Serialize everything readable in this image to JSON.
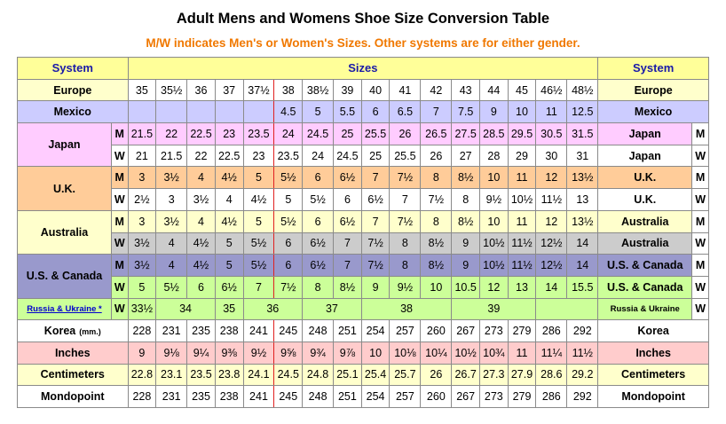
{
  "title": "Adult Mens and Womens Shoe Size Conversion Table",
  "subtitle": "M/W indicates Men's or Women's Sizes. Other systems are for either gender.",
  "header": {
    "system": "System",
    "sizes": "Sizes"
  },
  "colors": {
    "yellow": "#ffffcc",
    "lavender": "#ccccff",
    "pink": "#ffccff",
    "orange": "#ffcc99",
    "gray": "#cccccc",
    "blue": "#9999cc",
    "green": "#ccff99",
    "salmon": "#ffcccc",
    "white": "#ffffff",
    "accent": "#f07800"
  },
  "rows": {
    "europe": {
      "label": "Europe",
      "cells": [
        "35",
        "35½",
        "36",
        "37",
        "37½",
        "38",
        "38½",
        "39",
        "40",
        "41",
        "42",
        "43",
        "44",
        "45",
        "46½",
        "48½"
      ]
    },
    "mexico": {
      "label": "Mexico",
      "cells": [
        "",
        "",
        "",
        "",
        "",
        "4.5",
        "5",
        "5.5",
        "6",
        "6.5",
        "7",
        "7.5",
        "9",
        "10",
        "11",
        "12.5"
      ]
    },
    "japan": {
      "label": "Japan",
      "m": {
        "tag": "M",
        "label": "Japan",
        "cells": [
          "21.5",
          "22",
          "22.5",
          "23",
          "23.5",
          "24",
          "24.5",
          "25",
          "25.5",
          "26",
          "26.5",
          "27.5",
          "28.5",
          "29.5",
          "30.5",
          "31.5"
        ]
      },
      "w": {
        "tag": "W",
        "label": "Japan",
        "cells": [
          "21",
          "21.5",
          "22",
          "22.5",
          "23",
          "23.5",
          "24",
          "24.5",
          "25",
          "25.5",
          "26",
          "27",
          "28",
          "29",
          "30",
          "31"
        ]
      }
    },
    "uk": {
      "label": "U.K.",
      "m": {
        "tag": "M",
        "label": "U.K.",
        "cells": [
          "3",
          "3½",
          "4",
          "4½",
          "5",
          "5½",
          "6",
          "6½",
          "7",
          "7½",
          "8",
          "8½",
          "10",
          "11",
          "12",
          "13½"
        ]
      },
      "w": {
        "tag": "W",
        "label": "U.K.",
        "cells": [
          "2½",
          "3",
          "3½",
          "4",
          "4½",
          "5",
          "5½",
          "6",
          "6½",
          "7",
          "7½",
          "8",
          "9½",
          "10½",
          "11½",
          "13"
        ]
      }
    },
    "australia": {
      "label": "Australia",
      "m": {
        "tag": "M",
        "label": "Australia",
        "cells": [
          "3",
          "3½",
          "4",
          "4½",
          "5",
          "5½",
          "6",
          "6½",
          "7",
          "7½",
          "8",
          "8½",
          "10",
          "11",
          "12",
          "13½"
        ]
      },
      "w": {
        "tag": "W",
        "label": "Australia",
        "cells": [
          "3½",
          "4",
          "4½",
          "5",
          "5½",
          "6",
          "6½",
          "7",
          "7½",
          "8",
          "8½",
          "9",
          "10½",
          "11½",
          "12½",
          "14"
        ]
      }
    },
    "us": {
      "label": "U.S. & Canada",
      "m": {
        "tag": "M",
        "label": "U.S. & Canada",
        "cells": [
          "3½",
          "4",
          "4½",
          "5",
          "5½",
          "6",
          "6½",
          "7",
          "7½",
          "8",
          "8½",
          "9",
          "10½",
          "11½",
          "12½",
          "14"
        ]
      },
      "w": {
        "tag": "W",
        "label": "U.S. & Canada",
        "cells": [
          "5",
          "5½",
          "6",
          "6½",
          "7",
          "7½",
          "8",
          "8½",
          "9",
          "9½",
          "10",
          "10.5",
          "12",
          "13",
          "14",
          "15.5"
        ]
      }
    },
    "russia": {
      "label": "Russia & Ukraine *",
      "tag": "W",
      "right_label": "Russia & Ukraine",
      "cells": [
        "33½",
        "34",
        "35",
        "36",
        "37",
        "38",
        "39"
      ]
    },
    "korea": {
      "label": "Korea",
      "unit": "(mm.)",
      "right_label": "Korea",
      "cells": [
        "228",
        "231",
        "235",
        "238",
        "241",
        "245",
        "248",
        "251",
        "254",
        "257",
        "260",
        "267",
        "273",
        "279",
        "286",
        "292"
      ]
    },
    "inches": {
      "label": "Inches",
      "cells": [
        "9",
        "9⅛",
        "9¼",
        "9⅜",
        "9½",
        "9⅝",
        "9¾",
        "9⅞",
        "10",
        "10⅛",
        "10¼",
        "10½",
        "10¾",
        "11",
        "11¼",
        "11½"
      ]
    },
    "cm": {
      "label": "Centimeters",
      "cells": [
        "22.8",
        "23.1",
        "23.5",
        "23.8",
        "24.1",
        "24.5",
        "24.8",
        "25.1",
        "25.4",
        "25.7",
        "26",
        "26.7",
        "27.3",
        "27.9",
        "28.6",
        "29.2"
      ]
    },
    "mondo": {
      "label": "Mondopoint",
      "cells": [
        "228",
        "231",
        "235",
        "238",
        "241",
        "245",
        "248",
        "251",
        "254",
        "257",
        "260",
        "267",
        "273",
        "279",
        "286",
        "292"
      ]
    }
  }
}
